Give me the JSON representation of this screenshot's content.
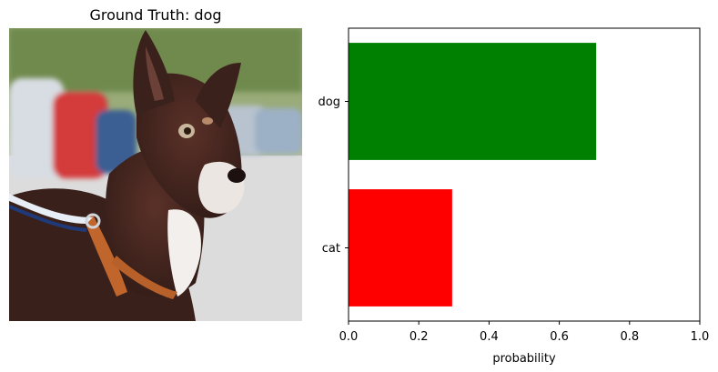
{
  "image_panel": {
    "title": "Ground Truth: dog",
    "photo_subject": "brown-and-white dog on leash"
  },
  "chart_data": {
    "type": "bar",
    "orientation": "horizontal",
    "categories": [
      "dog",
      "cat"
    ],
    "values": [
      0.705,
      0.295
    ],
    "colors": [
      "#008000",
      "#ff0000"
    ],
    "xlabel": "probability",
    "ylabel": "",
    "xlim": [
      0,
      1.0
    ],
    "xticks": [
      "0.0",
      "0.2",
      "0.4",
      "0.6",
      "0.8",
      "1.0"
    ],
    "grid": false
  }
}
